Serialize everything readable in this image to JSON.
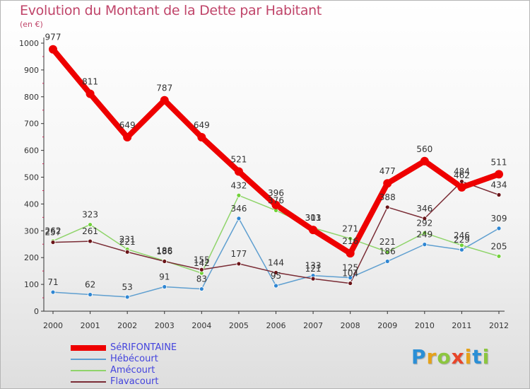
{
  "title": "Evolution du Montant de la Dette par Habitant",
  "unit": "(en €)",
  "brand": {
    "text": "Proxiti",
    "letters": [
      {
        "ch": "P",
        "color": "#2b8fd6"
      },
      {
        "ch": "r",
        "color": "#e6a21a"
      },
      {
        "ch": "o",
        "color": "#8cc63f"
      },
      {
        "ch": "x",
        "color": "#e8462a"
      },
      {
        "ch": "i",
        "color": "#e6a21a"
      },
      {
        "ch": "t",
        "color": "#2b8fd6"
      },
      {
        "ch": "i",
        "color": "#8cc63f"
      }
    ]
  },
  "chart_data": {
    "type": "line",
    "title": "Evolution du Montant de la Dette par Habitant",
    "ylabel": "(en €)",
    "xlabel": "",
    "x": [
      "2000",
      "2001",
      "2002",
      "2003",
      "2004",
      "2005",
      "2006",
      "2007",
      "2008",
      "2009",
      "2010",
      "2011",
      "2012"
    ],
    "ylim": [
      0,
      1000
    ],
    "yticks": [
      0,
      100,
      200,
      300,
      400,
      500,
      600,
      700,
      800,
      900,
      1000
    ],
    "grid": false,
    "legend": "bottom-left",
    "series": [
      {
        "name": "SéRIFONTAINE",
        "color": "#ee0000",
        "marker": "#ee0000",
        "width": 8,
        "values": [
          977,
          811,
          649,
          787,
          649,
          521,
          396,
          303,
          216,
          477,
          560,
          462,
          511
        ]
      },
      {
        "name": "Hébécourt",
        "color": "#5f9fd0",
        "marker": "#2f86d2",
        "width": 1.5,
        "values": [
          71,
          62,
          53,
          91,
          83,
          346,
          95,
          133,
          125,
          186,
          249,
          229,
          309
        ]
      },
      {
        "name": "Amécourt",
        "color": "#8fd46a",
        "marker": "#72d13a",
        "width": 1.5,
        "values": [
          262,
          323,
          231,
          188,
          142,
          432,
          376,
          311,
          271,
          221,
          292,
          246,
          205
        ]
      },
      {
        "name": "Flavacourt",
        "color": "#7a2c35",
        "marker": "#6a1418",
        "width": 1.5,
        "values": [
          257,
          261,
          221,
          186,
          155,
          177,
          144,
          121,
          104,
          388,
          346,
          484,
          434
        ]
      }
    ]
  }
}
